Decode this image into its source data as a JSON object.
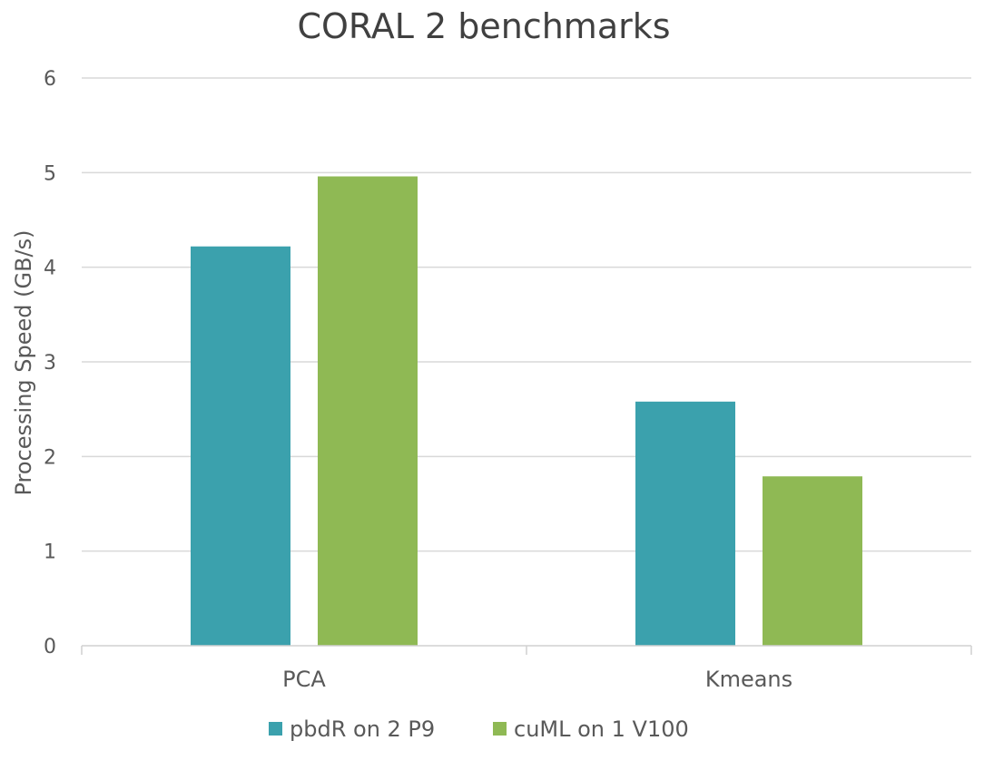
{
  "chart_data": {
    "type": "bar",
    "title": "CORAL 2 benchmarks",
    "xlabel": "",
    "ylabel": "Processing Speed (GB/s)",
    "categories": [
      "PCA",
      "Kmeans"
    ],
    "series": [
      {
        "name": "pbdR on 2 P9",
        "color": "#3ba1ad",
        "values": [
          4.22,
          2.58
        ]
      },
      {
        "name": "cuML on 1 V100",
        "color": "#8fb954",
        "values": [
          4.96,
          1.79
        ]
      }
    ],
    "ylim": [
      0,
      6
    ],
    "yticks": [
      "0",
      "1",
      "2",
      "3",
      "4",
      "5",
      "6"
    ],
    "grid": true,
    "legend_position": "bottom"
  }
}
